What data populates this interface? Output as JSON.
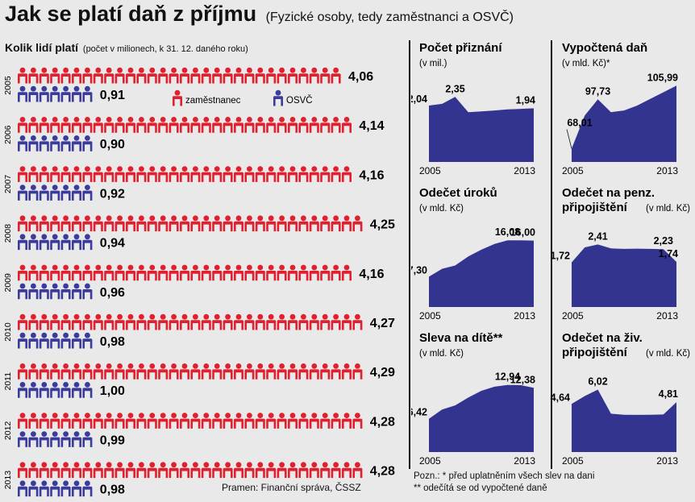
{
  "header": {
    "title": "Jak se platí daň z příjmu",
    "subtitle": "(Fyzické osoby, tedy zaměstnanci a OSVČ)"
  },
  "colors": {
    "employee": "#e0202e",
    "selfemployed": "#3a3b9b",
    "area": "#33348f",
    "background": "#e9e9e9"
  },
  "legend": {
    "employee": "zaměstnanec",
    "selfemployed": "OSVČ"
  },
  "source": "Pramen: Finanční správa, ČSSZ",
  "note": {
    "line1": "Pozn.: * před uplatněním všech slev na dani",
    "line2": "** odečítá se od vypočtené daně"
  },
  "chart_data": [
    {
      "type": "bar",
      "title": "Kolik lidí platí",
      "subtitle": "(počet v milionech, k 31. 12. daného roku)",
      "categories": [
        "2005",
        "2006",
        "2007",
        "2008",
        "2009",
        "2010",
        "2011",
        "2012",
        "2013"
      ],
      "series": [
        {
          "name": "zaměstnanec",
          "values": [
            4.06,
            4.14,
            4.16,
            4.25,
            4.16,
            4.27,
            4.29,
            4.28,
            4.28
          ],
          "labels": [
            "4,06",
            "4,14",
            "4,16",
            "4,25",
            "4,16",
            "4,27",
            "4,29",
            "4,28",
            "4,28"
          ]
        },
        {
          "name": "OSVČ",
          "values": [
            0.91,
            0.9,
            0.92,
            0.94,
            0.96,
            0.98,
            1.0,
            0.99,
            0.98
          ],
          "labels": [
            "0,91",
            "0,90",
            "0,92",
            "0,94",
            "0,96",
            "0,98",
            "1,00",
            "0,99",
            "0,98"
          ]
        }
      ]
    },
    {
      "type": "area",
      "title": "Počet přiznání",
      "unit": "(v mil.)",
      "x": [
        2005,
        2006,
        2007,
        2008,
        2009,
        2010,
        2011,
        2012,
        2013
      ],
      "values": [
        2.04,
        2.1,
        2.35,
        1.8,
        1.83,
        1.86,
        1.9,
        1.92,
        1.94
      ],
      "ylim": [
        0,
        3
      ],
      "xlabels": [
        "2005",
        "2013"
      ],
      "annotations": [
        {
          "i": 0,
          "text": "2,04"
        },
        {
          "i": 2,
          "text": "2,35"
        },
        {
          "i": 8,
          "text": "1,94"
        }
      ]
    },
    {
      "type": "area",
      "title": "Vypočtená daň",
      "unit": "(v mld. Kč)*",
      "x": [
        2005,
        2006,
        2007,
        2008,
        2009,
        2010,
        2011,
        2012,
        2013
      ],
      "values": [
        68.01,
        88,
        97.73,
        90,
        91,
        94,
        98,
        102,
        105.99
      ],
      "ylim": [
        60,
        110
      ],
      "xlabels": [
        "2005",
        "2013"
      ],
      "annotations": [
        {
          "i": 0,
          "text": "68,01",
          "leader": true
        },
        {
          "i": 2,
          "text": "97,73"
        },
        {
          "i": 8,
          "text": "105,99"
        }
      ]
    },
    {
      "type": "area",
      "title": "Odečet úroků",
      "unit": "(v mld. Kč)",
      "x": [
        2005,
        2006,
        2007,
        2008,
        2009,
        2010,
        2011,
        2012,
        2013
      ],
      "values": [
        7.3,
        9.2,
        10.0,
        12.2,
        13.8,
        15.2,
        16.08,
        16.05,
        16.0
      ],
      "ylim": [
        0,
        20
      ],
      "xlabels": [
        "2005",
        "2013"
      ],
      "annotations": [
        {
          "i": 0,
          "text": "7,30"
        },
        {
          "i": 6,
          "text": "16,08"
        },
        {
          "i": 8,
          "text": "16,00"
        }
      ]
    },
    {
      "type": "area",
      "title": "Odečet na penz. připojištění",
      "unit": "(v mld. Kč)",
      "x": [
        2005,
        2006,
        2007,
        2008,
        2009,
        2010,
        2011,
        2012,
        2013
      ],
      "values": [
        1.72,
        2.3,
        2.41,
        2.26,
        2.24,
        2.25,
        2.24,
        2.23,
        1.74
      ],
      "ylim": [
        0,
        3.2
      ],
      "xlabels": [
        "2005",
        "2013"
      ],
      "annotations": [
        {
          "i": 0,
          "text": "1,72"
        },
        {
          "i": 2,
          "text": "2,41"
        },
        {
          "i": 7,
          "text": "2,23"
        },
        {
          "i": 8,
          "text": "1,74"
        }
      ]
    },
    {
      "type": "area",
      "title": "Sleva na dítě**",
      "unit": "(v mld. Kč)",
      "x": [
        2005,
        2006,
        2007,
        2008,
        2009,
        2010,
        2011,
        2012,
        2013
      ],
      "values": [
        6.42,
        8.2,
        9.0,
        10.5,
        11.8,
        12.6,
        12.94,
        12.9,
        12.38
      ],
      "ylim": [
        0,
        16
      ],
      "xlabels": [
        "2005",
        "2013"
      ],
      "annotations": [
        {
          "i": 0,
          "text": "6,42"
        },
        {
          "i": 6,
          "text": "12,94"
        },
        {
          "i": 8,
          "text": "12,38"
        }
      ]
    },
    {
      "type": "area",
      "title": "Odečet na živ. připojištění",
      "unit": "(v mld. Kč)",
      "x": [
        2005,
        2006,
        2007,
        2008,
        2009,
        2010,
        2011,
        2012,
        2013
      ],
      "values": [
        4.64,
        5.4,
        6.02,
        3.7,
        3.6,
        3.58,
        3.6,
        3.62,
        4.81
      ],
      "ylim": [
        0,
        8
      ],
      "xlabels": [
        "2005",
        "2013"
      ],
      "annotations": [
        {
          "i": 0,
          "text": "4,64"
        },
        {
          "i": 2,
          "text": "6,02"
        },
        {
          "i": 8,
          "text": "4,81"
        }
      ]
    }
  ]
}
